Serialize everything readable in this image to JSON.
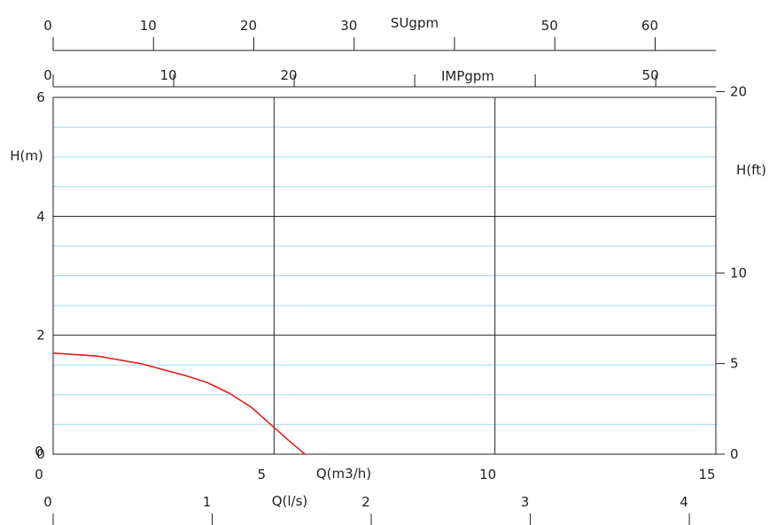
{
  "chart_data": {
    "type": "line",
    "title": "",
    "x_axes": {
      "bottom_primary": {
        "label": "Q(m3/h)",
        "ticks": [
          0,
          5,
          10,
          15
        ],
        "range": [
          0,
          15
        ]
      },
      "bottom_secondary": {
        "label": "Q(l/s)",
        "ticks": [
          0,
          1,
          2,
          3,
          4
        ]
      },
      "top_impgpm": {
        "label": "IMPgpm",
        "ticks": [
          0,
          10,
          20,
          30,
          40,
          50
        ],
        "tick_labels": [
          "0",
          "10",
          "20",
          "",
          "",
          "50"
        ]
      },
      "top_usgpm": {
        "label": "SUgpm",
        "ticks": [
          0,
          10,
          20,
          30,
          40,
          50,
          60
        ],
        "tick_labels": [
          "0",
          "10",
          "20",
          "30",
          "",
          "50",
          "60"
        ]
      }
    },
    "y_axes": {
      "left": {
        "label": "H(m)",
        "ticks": [
          0,
          2,
          4,
          6
        ],
        "range": [
          0,
          6
        ]
      },
      "right": {
        "label": "H(ft)",
        "ticks": [
          0,
          5,
          10,
          20
        ],
        "tick_labels": [
          "0",
          "5",
          "10",
          "20"
        ]
      }
    },
    "grid": {
      "major_y": [
        2,
        4
      ],
      "major_x": [
        5,
        10
      ],
      "minor_y_step": 0.5
    },
    "series": [
      {
        "name": "",
        "color": "#e02020",
        "x": [
          0,
          1,
          2,
          3,
          3.5,
          4,
          4.5,
          5,
          5.3,
          5.7
        ],
        "y": [
          1.7,
          1.65,
          1.52,
          1.32,
          1.2,
          1.02,
          0.78,
          0.45,
          0.25,
          0.0
        ]
      }
    ]
  }
}
